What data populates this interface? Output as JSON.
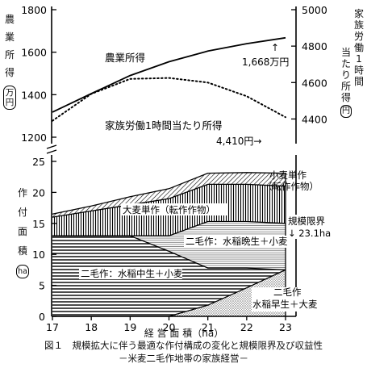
{
  "chart_data": [
    {
      "type": "line",
      "x": [
        17,
        18,
        19,
        20,
        21,
        22,
        23
      ],
      "left_ylabel": "農業所得（万円）",
      "left_ylabel_chars": [
        "農",
        "業",
        "所",
        "得",
        "万",
        "円"
      ],
      "right_ylabel": "家族労働1時間当たり所得（円）",
      "right_ylabel_col1": [
        "家",
        "族",
        "労",
        "働",
        "1",
        "時",
        "間"
      ],
      "right_ylabel_col2": [
        "当",
        "た",
        "り",
        "所",
        "得",
        "円"
      ],
      "left_ylim": [
        1200,
        1800
      ],
      "left_yticks": [
        "1200",
        "1400",
        "1600",
        "1800"
      ],
      "right_ylim": [
        4300,
        5000
      ],
      "right_yticks": [
        "4400",
        "4600",
        "4800",
        "5000"
      ],
      "series": [
        {
          "name": "農業所得",
          "axis": "left",
          "style": "solid",
          "values": [
            1318,
            1405,
            1490,
            1555,
            1605,
            1640,
            1668
          ],
          "end_label": "1,668万円"
        },
        {
          "name": "家族労働1時間当たり所得",
          "axis": "right",
          "style": "dotted",
          "values": [
            4390,
            4538,
            4620,
            4625,
            4600,
            4525,
            4410
          ],
          "end_label": "4,410円→"
        }
      ]
    },
    {
      "type": "area",
      "xlabel": "経 営 面 積（ha）",
      "ylabel": "作付面積（ha）",
      "ylabel_chars": [
        "作",
        "付",
        "面",
        "積",
        "ha"
      ],
      "x": [
        17,
        18,
        19,
        20,
        21,
        22,
        23
      ],
      "xticks": [
        "17",
        "18",
        "19",
        "20",
        "21",
        "22",
        "23"
      ],
      "ylim": [
        0,
        25
      ],
      "yticks": [
        "0",
        "5",
        "10",
        "15",
        "20",
        "25"
      ],
      "series": [
        {
          "name": "二毛作：水稲早生＋大麦",
          "values": [
            0,
            0,
            0,
            0,
            1.8,
            4.6,
            7.5
          ]
        },
        {
          "name": "二毛作：水稲中生＋小麦",
          "values": [
            13,
            13,
            13,
            10.5,
            6,
            3.2,
            0
          ]
        },
        {
          "name": "二毛作：水稲晩生＋小麦",
          "values": [
            0,
            0,
            0,
            2.5,
            7.5,
            7.5,
            7.5
          ]
        },
        {
          "name": "大麦単作（転作作物）",
          "values": [
            3,
            4,
            5,
            6,
            6,
            6,
            6
          ]
        },
        {
          "name": "小麦単作（転作作物）",
          "values": [
            0.5,
            0.8,
            1.3,
            1.6,
            1.8,
            1.9,
            2.1
          ]
        }
      ],
      "labels": {
        "wheat_single": [
          "小麦単作",
          "（転作作物）"
        ],
        "barley_single": "大麦単作（転作作物）",
        "late_rice": "二毛作：水稲晩生＋小麦",
        "mid_rice": "二毛作：水稲中生＋小麦",
        "early_rice": [
          "二毛作",
          "水稲早生＋大麦"
        ]
      },
      "scale_limit_label": [
        "規模限界",
        "↓ 23.1ha"
      ]
    }
  ],
  "income_label": "農業所得",
  "hourly_label": "家族労働1時間当たり所得",
  "income_end_arrow": "↑",
  "caption_line1": "図１　規模拡大に伴う最適な作付構成の変化と規模限界及び収益性",
  "caption_line2": "－米麦二毛作地帯の家族経営－"
}
